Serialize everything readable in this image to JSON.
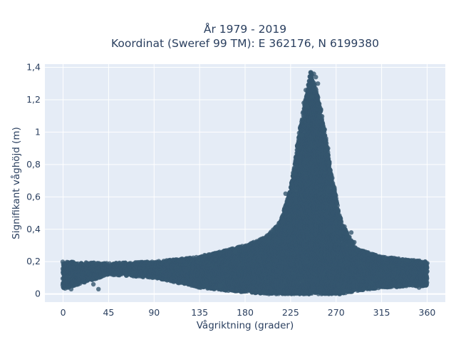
{
  "chart_data": {
    "type": "scatter",
    "title": "År 1979 - 2019",
    "subtitle": "Koordinat (Sweref 99 TM): E 362176, N 6199380",
    "xlabel": "Vågriktning (grader)",
    "ylabel": "Signifikant våghöjd (m)",
    "x_ticks": [
      0,
      45,
      90,
      135,
      180,
      225,
      270,
      315,
      360
    ],
    "y_ticks": [
      0,
      0.2,
      0.4,
      0.6,
      0.8,
      1,
      1.2,
      1.4
    ],
    "y_tick_labels": [
      "0",
      "0,2",
      "0,4",
      "0,6",
      "0,8",
      "1",
      "1,2",
      "1,4"
    ],
    "xlim": [
      -18,
      378
    ],
    "ylim": [
      -0.05,
      1.42
    ],
    "grid": true,
    "marker_color": "#34566e",
    "background_color": "#e5ecf6",
    "envelope": [
      {
        "x": 0,
        "ymin": 0.03,
        "ymax": 0.2
      },
      {
        "x": 45,
        "ymin": 0.12,
        "ymax": 0.19
      },
      {
        "x": 90,
        "ymin": 0.1,
        "ymax": 0.2
      },
      {
        "x": 135,
        "ymin": 0.04,
        "ymax": 0.23
      },
      {
        "x": 180,
        "ymin": 0.01,
        "ymax": 0.3
      },
      {
        "x": 200,
        "ymin": 0.0,
        "ymax": 0.35
      },
      {
        "x": 215,
        "ymin": 0.0,
        "ymax": 0.45
      },
      {
        "x": 225,
        "ymin": 0.0,
        "ymax": 0.65
      },
      {
        "x": 235,
        "ymin": 0.0,
        "ymax": 1.05
      },
      {
        "x": 245,
        "ymin": 0.0,
        "ymax": 1.37
      },
      {
        "x": 255,
        "ymin": 0.0,
        "ymax": 1.15
      },
      {
        "x": 265,
        "ymin": 0.0,
        "ymax": 0.75
      },
      {
        "x": 275,
        "ymin": 0.0,
        "ymax": 0.45
      },
      {
        "x": 290,
        "ymin": 0.02,
        "ymax": 0.28
      },
      {
        "x": 315,
        "ymin": 0.04,
        "ymax": 0.23
      },
      {
        "x": 360,
        "ymin": 0.05,
        "ymax": 0.2
      }
    ],
    "sample_points": [
      {
        "x": 5,
        "y": 0.04
      },
      {
        "x": 8,
        "y": 0.03
      },
      {
        "x": 30,
        "y": 0.06
      },
      {
        "x": 35,
        "y": 0.03
      },
      {
        "x": 140,
        "y": 0.24
      },
      {
        "x": 155,
        "y": 0.05
      },
      {
        "x": 170,
        "y": 0.26
      },
      {
        "x": 220,
        "y": 0.62
      },
      {
        "x": 228,
        "y": 0.74
      },
      {
        "x": 236,
        "y": 0.98
      },
      {
        "x": 240,
        "y": 1.26
      },
      {
        "x": 243,
        "y": 1.28
      },
      {
        "x": 245,
        "y": 1.37
      },
      {
        "x": 248,
        "y": 1.36
      },
      {
        "x": 250,
        "y": 1.34
      },
      {
        "x": 252,
        "y": 1.3
      },
      {
        "x": 238,
        "y": 1.18
      },
      {
        "x": 241,
        "y": 1.16
      },
      {
        "x": 246,
        "y": 1.22
      },
      {
        "x": 255,
        "y": 1.1
      },
      {
        "x": 258,
        "y": 1.02
      },
      {
        "x": 262,
        "y": 0.9
      },
      {
        "x": 285,
        "y": 0.38
      },
      {
        "x": 288,
        "y": 0.32
      },
      {
        "x": 318,
        "y": 0.22
      },
      {
        "x": 332,
        "y": 0.05
      },
      {
        "x": 340,
        "y": 0.21
      },
      {
        "x": 352,
        "y": 0.04
      }
    ]
  }
}
